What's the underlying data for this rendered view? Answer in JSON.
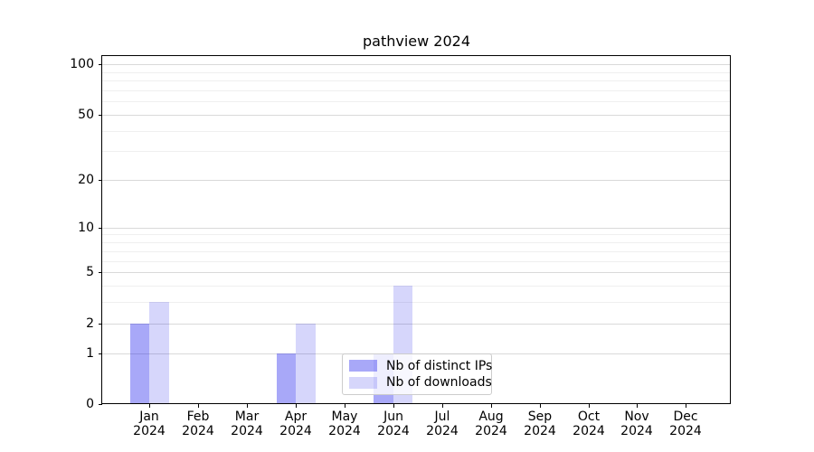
{
  "title": "pathview 2024",
  "chart_data": {
    "type": "bar",
    "title": "pathview 2024",
    "categories": [
      "Jan",
      "Feb",
      "Mar",
      "Apr",
      "May",
      "Jun",
      "Jul",
      "Aug",
      "Sep",
      "Oct",
      "Nov",
      "Dec"
    ],
    "category_year": "2024",
    "series": [
      {
        "name": "Nb of distinct IPs",
        "color": "rgba(0,0,234,0.34)",
        "values": [
          2,
          0,
          0,
          1,
          0,
          1,
          0,
          0,
          0,
          0,
          0,
          0
        ]
      },
      {
        "name": "Nb of downloads",
        "color": "rgba(0,0,230,0.16)",
        "values": [
          3,
          0,
          0,
          2,
          0,
          4,
          0,
          0,
          0,
          0,
          0,
          0
        ]
      }
    ],
    "yscale": "log1p",
    "ylim": [
      0,
      112
    ],
    "ytick_values": [
      0,
      1,
      2,
      5,
      10,
      20,
      50,
      100
    ],
    "ytick_minor": [
      3,
      4,
      6,
      7,
      8,
      9,
      30,
      40,
      60,
      70,
      80,
      90
    ],
    "grid": "on",
    "legend": {
      "position": "lower-center",
      "entries": [
        "Nb of distinct IPs",
        "Nb of downloads"
      ]
    },
    "xlabel": "",
    "ylabel": ""
  }
}
